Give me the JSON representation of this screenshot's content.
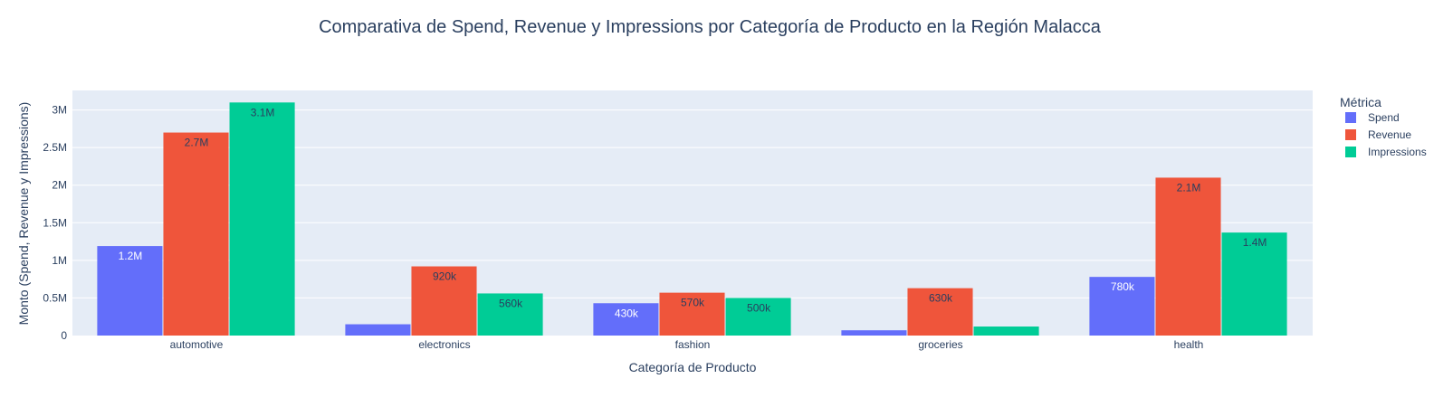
{
  "chart_data": {
    "type": "bar",
    "title": "Comparativa de Spend, Revenue y Impressions por Categoría de Producto en la Región Malacca",
    "xlabel": "Categoría de Producto",
    "ylabel": "Monto (Spend, Revenue y Impressions)",
    "ylim": [
      0,
      3260000
    ],
    "yticks": [
      0,
      500000,
      1000000,
      1500000,
      2000000,
      2500000,
      3000000
    ],
    "ytick_labels": [
      "0",
      "0.5M",
      "1M",
      "1.5M",
      "2M",
      "2.5M",
      "3M"
    ],
    "categories": [
      "automotive",
      "electronics",
      "fashion",
      "groceries",
      "health"
    ],
    "legend_title": "Métrica",
    "legend_position": "top-right",
    "grid": true,
    "series": [
      {
        "name": "Spend",
        "color": "#636efa",
        "label_color": "#ffffff",
        "values": [
          1190000,
          150000,
          430000,
          70000,
          780000
        ],
        "labels": [
          "1.2M",
          "",
          "430k",
          "",
          "780k"
        ]
      },
      {
        "name": "Revenue",
        "color": "#ef553b",
        "label_color": "#2a3f5f",
        "values": [
          2700000,
          920000,
          570000,
          630000,
          2100000
        ],
        "labels": [
          "2.7M",
          "920k",
          "570k",
          "630k",
          "2.1M"
        ]
      },
      {
        "name": "Impressions",
        "color": "#00cc96",
        "label_color": "#2a3f5f",
        "values": [
          3100000,
          560000,
          500000,
          120000,
          1370000
        ],
        "labels": [
          "3.1M",
          "560k",
          "500k",
          "",
          "1.4M"
        ]
      }
    ]
  }
}
